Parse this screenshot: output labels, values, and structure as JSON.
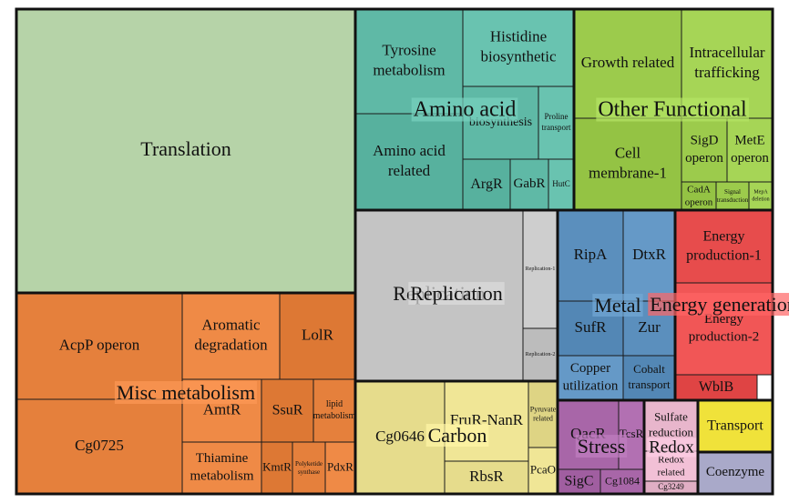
{
  "chart_data": {
    "type": "treemap",
    "groups": [
      {
        "name": "Translation",
        "color": "#b6d3a8",
        "show_group_label": false,
        "cells": [
          {
            "label": "Translation"
          }
        ]
      },
      {
        "name": "Amino acid",
        "color": "#5fb9a6",
        "cells": [
          {
            "label": "Tyrosine metabolism"
          },
          {
            "label": "Histidine biosynthetic"
          },
          {
            "label": "Amino acid related"
          },
          {
            "label": "biosynthesis"
          },
          {
            "label": "Proline transport"
          },
          {
            "label": "ArgR"
          },
          {
            "label": "GabR"
          },
          {
            "label": "HutC"
          }
        ]
      },
      {
        "name": "Other Functional",
        "color": "#9ccb4c",
        "cells": [
          {
            "label": "Growth related"
          },
          {
            "label": "Intracellular trafficking"
          },
          {
            "label": "Cell membrane-1"
          },
          {
            "label": "SigD operon"
          },
          {
            "label": "MetE operon"
          },
          {
            "label": "CadA operon"
          },
          {
            "label": "Signal transduction"
          },
          {
            "label": "MepA deletion"
          }
        ]
      },
      {
        "name": "Replication",
        "color": "#c4c4c4",
        "cells": [
          {
            "label": "Replication"
          },
          {
            "label": "Replication-1"
          },
          {
            "label": "Replication-2"
          }
        ]
      },
      {
        "name": "Metal",
        "color": "#5b8fbd",
        "cells": [
          {
            "label": "RipA"
          },
          {
            "label": "DtxR"
          },
          {
            "label": "SufR"
          },
          {
            "label": "Zur"
          },
          {
            "label": "Copper utilization"
          },
          {
            "label": "Cobalt transport"
          }
        ]
      },
      {
        "name": "Energy generation",
        "color": "#e74c4c",
        "cells": [
          {
            "label": "Energy production-1"
          },
          {
            "label": "Energy production-2"
          },
          {
            "label": "WblB"
          }
        ]
      },
      {
        "name": "Misc metabolism",
        "color": "#e5803c",
        "cells": [
          {
            "label": "AcpP operon"
          },
          {
            "label": "Aromatic degradation"
          },
          {
            "label": "LolR"
          },
          {
            "label": "Cg0725"
          },
          {
            "label": "AmtR"
          },
          {
            "label": "SsuR"
          },
          {
            "label": "lipid metabolism"
          },
          {
            "label": "Thiamine metabolism"
          },
          {
            "label": "KmtR"
          },
          {
            "label": "Polyketide synthase"
          },
          {
            "label": "PdxR"
          }
        ]
      },
      {
        "name": "Carbon",
        "color": "#e6dc8c",
        "cells": [
          {
            "label": "Cg0646"
          },
          {
            "label": "FruR-NanR"
          },
          {
            "label": "Pyruvate related"
          },
          {
            "label": "RbsR"
          },
          {
            "label": "PcaO"
          }
        ]
      },
      {
        "name": "Stress",
        "color": "#a866a8",
        "cells": [
          {
            "label": "QacR"
          },
          {
            "label": "TcsR"
          },
          {
            "label": "SigC"
          },
          {
            "label": "Cg1084"
          }
        ]
      },
      {
        "name": "Redox",
        "color": "#e8b6cc",
        "cells": [
          {
            "label": "Sulfate reduction"
          },
          {
            "label": "Redox related"
          },
          {
            "label": "Cg3249"
          }
        ]
      },
      {
        "name": "Transport",
        "color": "#f0e23a",
        "show_group_label": false,
        "cells": [
          {
            "label": "Transport"
          }
        ]
      },
      {
        "name": "Coenzyme",
        "color": "#a9a9c9",
        "show_group_label": false,
        "cells": [
          {
            "label": "Coenzyme"
          }
        ]
      }
    ]
  }
}
